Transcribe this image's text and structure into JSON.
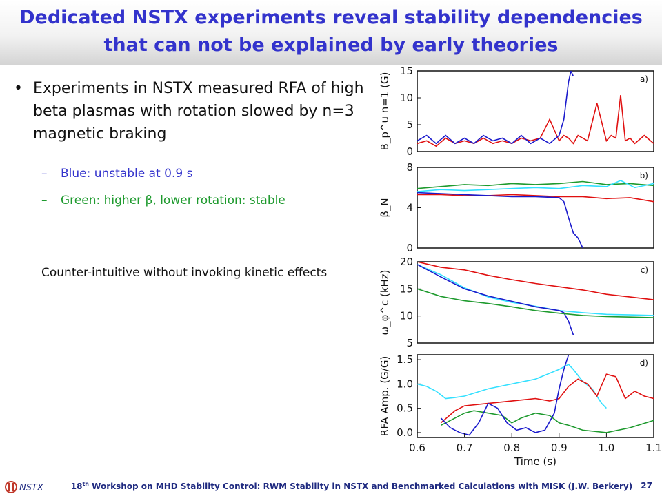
{
  "title": {
    "line1": "Dedicated NSTX experiments reveal stability dependencies",
    "line2": "that can not be explained by early theories"
  },
  "bullet": {
    "symbol": "•",
    "text": "Experiments in NSTX measured RFA of high beta plasmas with rotation slowed by n=3 magnetic braking"
  },
  "sub_bullets": {
    "dash": "–",
    "blue": {
      "prefix": "Blue: ",
      "underlined": "unstable",
      "suffix": " at 0.9 s"
    },
    "green": {
      "prefix": "Green: ",
      "underlined1": "higher",
      "mid1": " β, ",
      "underlined2": "lower",
      "mid2": " rotation: ",
      "underlined3": "stable"
    }
  },
  "note": "Counter-intuitive without invoking kinetic effects",
  "footer": {
    "logo": "NSTX",
    "prefix": "18",
    "superscript": "th",
    "text": " Workshop on MHD Stability Control: RWM Stability in NSTX and Benchmarked Calculations with MISK (J.W. Berkery)",
    "page": "27"
  },
  "colors": {
    "title": "#3333cc",
    "blue": "#1a1acc",
    "red": "#e01010",
    "green": "#1e9a2e",
    "cyan": "#33e0ff"
  },
  "chart_data": [
    {
      "type": "line",
      "panel": "a)",
      "ylabel": "B_p^u n=1 (G)",
      "xlim": [
        0.6,
        1.1
      ],
      "ylim": [
        0,
        15
      ],
      "yticks": [
        "0",
        "5",
        "10",
        "15"
      ],
      "series": [
        {
          "color": "red",
          "x": [
            0.6,
            0.62,
            0.64,
            0.66,
            0.68,
            0.7,
            0.72,
            0.74,
            0.76,
            0.78,
            0.8,
            0.82,
            0.84,
            0.86,
            0.88,
            0.9,
            0.91,
            0.92,
            0.93,
            0.94,
            0.96,
            0.98,
            1.0,
            1.01,
            1.02,
            1.03,
            1.04,
            1.05,
            1.06,
            1.08,
            1.1
          ],
          "y": [
            1.5,
            2,
            1,
            2.5,
            1.5,
            2,
            1.5,
            2.5,
            1.5,
            2,
            1.5,
            2.5,
            2,
            2.5,
            6,
            2,
            3,
            2.5,
            1.5,
            3,
            2,
            9,
            2,
            3,
            2.5,
            10.5,
            2,
            2.5,
            1.5,
            3,
            1.5
          ]
        },
        {
          "color": "blue",
          "x": [
            0.6,
            0.62,
            0.64,
            0.66,
            0.68,
            0.7,
            0.72,
            0.74,
            0.76,
            0.78,
            0.8,
            0.82,
            0.84,
            0.86,
            0.88,
            0.9,
            0.91,
            0.92,
            0.925,
            0.93
          ],
          "y": [
            2,
            3,
            1.5,
            3,
            1.5,
            2.5,
            1.5,
            3,
            2,
            2.5,
            1.5,
            3,
            1.5,
            2.5,
            1.5,
            3,
            6,
            13,
            15,
            14
          ]
        }
      ]
    },
    {
      "type": "line",
      "panel": "b)",
      "ylabel": "β_N",
      "xlim": [
        0.6,
        1.1
      ],
      "ylim": [
        0,
        8
      ],
      "yticks": [
        "0",
        "4",
        "8"
      ],
      "series": [
        {
          "color": "green",
          "x": [
            0.6,
            0.65,
            0.7,
            0.75,
            0.8,
            0.85,
            0.9,
            0.95,
            1.0,
            1.05,
            1.1
          ],
          "y": [
            5.9,
            6.1,
            6.3,
            6.2,
            6.4,
            6.3,
            6.4,
            6.6,
            6.3,
            6.4,
            6.2
          ]
        },
        {
          "color": "cyan",
          "x": [
            0.6,
            0.65,
            0.7,
            0.75,
            0.8,
            0.85,
            0.9,
            0.95,
            1.0,
            1.03,
            1.06,
            1.1
          ],
          "y": [
            5.6,
            5.8,
            5.7,
            5.8,
            5.9,
            6.0,
            5.9,
            6.2,
            6.1,
            6.7,
            6.0,
            6.4
          ]
        },
        {
          "color": "red",
          "x": [
            0.6,
            0.65,
            0.7,
            0.75,
            0.8,
            0.85,
            0.9,
            0.95,
            1.0,
            1.05,
            1.1
          ],
          "y": [
            5.3,
            5.3,
            5.2,
            5.2,
            5.3,
            5.2,
            5.1,
            5.1,
            4.9,
            5.0,
            4.6
          ]
        },
        {
          "color": "blue",
          "x": [
            0.6,
            0.65,
            0.7,
            0.75,
            0.8,
            0.85,
            0.9,
            0.91,
            0.92,
            0.93,
            0.94,
            0.95
          ],
          "y": [
            5.5,
            5.4,
            5.3,
            5.2,
            5.1,
            5.1,
            5.0,
            4.6,
            3.0,
            1.5,
            1.0,
            0
          ]
        }
      ]
    },
    {
      "type": "line",
      "panel": "c)",
      "ylabel": "ω_φ^c (kHz)",
      "xlim": [
        0.6,
        1.1
      ],
      "ylim": [
        5,
        20
      ],
      "yticks": [
        "5",
        "10",
        "15",
        "20"
      ],
      "series": [
        {
          "color": "red",
          "x": [
            0.6,
            0.65,
            0.7,
            0.75,
            0.8,
            0.85,
            0.9,
            0.95,
            1.0,
            1.05,
            1.1
          ],
          "y": [
            20,
            19,
            18.5,
            17.5,
            16.7,
            16,
            15.4,
            14.8,
            14,
            13.5,
            13
          ]
        },
        {
          "color": "cyan",
          "x": [
            0.6,
            0.65,
            0.7,
            0.75,
            0.8,
            0.85,
            0.9,
            0.95,
            1.0,
            1.05,
            1.1
          ],
          "y": [
            19.5,
            17.6,
            15.2,
            13.5,
            12.5,
            11.8,
            11,
            10.6,
            10.3,
            10.2,
            10.1
          ]
        },
        {
          "color": "blue",
          "x": [
            0.6,
            0.65,
            0.7,
            0.75,
            0.8,
            0.85,
            0.9,
            0.91,
            0.92,
            0.93
          ],
          "y": [
            19.5,
            17.2,
            15,
            13.7,
            12.7,
            11.7,
            11,
            10.6,
            9,
            6.5
          ]
        },
        {
          "color": "green",
          "x": [
            0.6,
            0.65,
            0.7,
            0.75,
            0.8,
            0.85,
            0.9,
            0.95,
            1.0,
            1.05,
            1.1
          ],
          "y": [
            15,
            13.6,
            12.8,
            12.3,
            11.7,
            11,
            10.5,
            10.1,
            9.9,
            9.8,
            9.7
          ]
        }
      ]
    },
    {
      "type": "line",
      "panel": "d)",
      "ylabel": "RFA Amp. (G/G)",
      "xlabel": "Time (s)",
      "xlim": [
        0.6,
        1.1
      ],
      "ylim": [
        -0.1,
        1.6
      ],
      "yticks": [
        "0.0",
        "0.5",
        "1.0",
        "1.5"
      ],
      "xticks": [
        "0.6",
        "0.7",
        "0.8",
        "0.9",
        "1.0",
        "1.1"
      ],
      "series": [
        {
          "color": "cyan",
          "x": [
            0.6,
            0.62,
            0.64,
            0.66,
            0.68,
            0.7,
            0.75,
            0.8,
            0.85,
            0.9,
            0.91,
            0.92,
            0.93,
            0.95,
            0.97,
            0.99,
            1.0
          ],
          "y": [
            1.0,
            0.95,
            0.85,
            0.7,
            0.72,
            0.75,
            0.9,
            1.0,
            1.1,
            1.3,
            1.35,
            1.4,
            1.3,
            1.05,
            0.9,
            0.6,
            0.5
          ]
        },
        {
          "color": "red",
          "x": [
            0.65,
            0.68,
            0.7,
            0.75,
            0.8,
            0.85,
            0.88,
            0.9,
            0.92,
            0.94,
            0.96,
            0.98,
            1.0,
            1.02,
            1.04,
            1.06,
            1.08,
            1.1
          ],
          "y": [
            0.2,
            0.45,
            0.55,
            0.6,
            0.65,
            0.7,
            0.65,
            0.7,
            0.95,
            1.1,
            1.0,
            0.75,
            1.2,
            1.15,
            0.7,
            0.85,
            0.75,
            0.7
          ]
        },
        {
          "color": "green",
          "x": [
            0.65,
            0.68,
            0.7,
            0.72,
            0.75,
            0.78,
            0.8,
            0.82,
            0.85,
            0.88,
            0.9,
            0.92,
            0.95,
            1.0,
            1.05,
            1.1
          ],
          "y": [
            0.15,
            0.3,
            0.4,
            0.45,
            0.4,
            0.35,
            0.2,
            0.3,
            0.4,
            0.35,
            0.2,
            0.15,
            0.05,
            0.0,
            0.1,
            0.25
          ]
        },
        {
          "color": "blue",
          "x": [
            0.65,
            0.67,
            0.69,
            0.71,
            0.73,
            0.75,
            0.77,
            0.79,
            0.81,
            0.83,
            0.85,
            0.87,
            0.89,
            0.9,
            0.91,
            0.92
          ],
          "y": [
            0.3,
            0.1,
            0.0,
            -0.05,
            0.2,
            0.6,
            0.5,
            0.2,
            0.05,
            0.1,
            0.0,
            0.05,
            0.4,
            0.9,
            1.3,
            1.6
          ]
        }
      ]
    }
  ]
}
